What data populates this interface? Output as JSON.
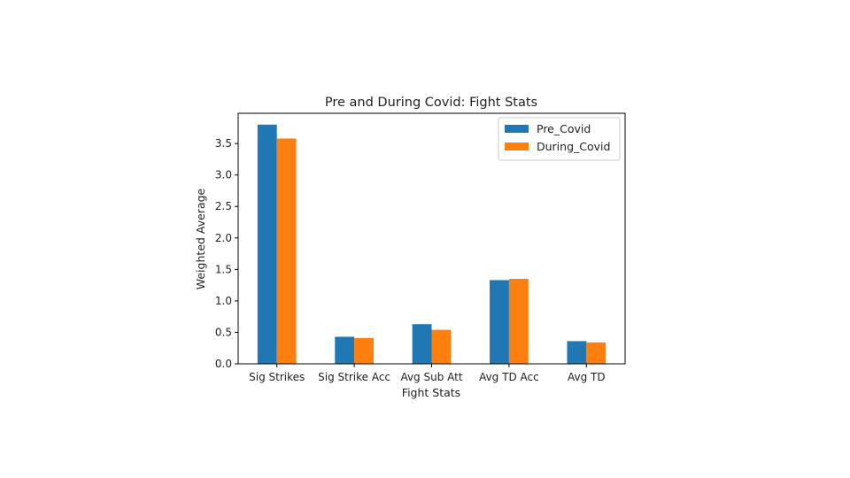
{
  "chart_data": {
    "type": "bar",
    "title": "Pre and During Covid: Fight Stats",
    "xlabel": "Fight Stats",
    "ylabel": "Weighted Average",
    "categories": [
      "Sig Strikes",
      "Sig Strike Acc",
      "Avg Sub Att",
      "Avg TD Acc",
      "Avg TD"
    ],
    "series": [
      {
        "name": "Pre_Covid",
        "color": "#1f77b4",
        "values": [
          3.8,
          0.43,
          0.63,
          1.33,
          0.36
        ]
      },
      {
        "name": "During_Covid",
        "color": "#ff7f0e",
        "values": [
          3.58,
          0.41,
          0.54,
          1.35,
          0.34
        ]
      }
    ],
    "ylim": [
      0,
      3.98
    ],
    "yticks": [
      "0.0",
      "0.5",
      "1.0",
      "1.5",
      "2.0",
      "2.5",
      "3.0",
      "3.5"
    ],
    "legend_position": "top-right",
    "grid": false
  }
}
